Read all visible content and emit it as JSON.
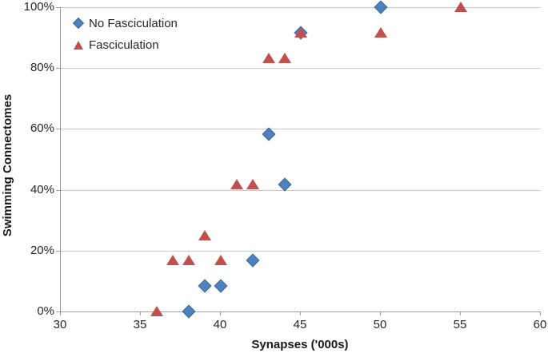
{
  "chart_data": {
    "type": "scatter",
    "title": "",
    "xlabel": "Synapses ('000s)",
    "ylabel": "Swimming Connectomes",
    "xlim": [
      30,
      60
    ],
    "xticks": [
      30,
      35,
      40,
      45,
      50,
      55,
      60
    ],
    "ylim": [
      0,
      100
    ],
    "yticks": [
      {
        "value": 0,
        "label": "0%"
      },
      {
        "value": 20,
        "label": "20%"
      },
      {
        "value": 40,
        "label": "40%"
      },
      {
        "value": 60,
        "label": "60%"
      },
      {
        "value": 80,
        "label": "80%"
      },
      {
        "value": 100,
        "label": "100%"
      }
    ],
    "grid": "horizontal",
    "legend_position": "top-left-inside",
    "series": [
      {
        "name": "No Fasciculation",
        "marker": "diamond",
        "color": "#4F81BD",
        "border_color": "#3A6796",
        "points": [
          {
            "x": 38,
            "y": 0
          },
          {
            "x": 39,
            "y": 8.3
          },
          {
            "x": 40,
            "y": 8.3
          },
          {
            "x": 42,
            "y": 16.7
          },
          {
            "x": 43,
            "y": 58.3
          },
          {
            "x": 44,
            "y": 41.7
          },
          {
            "x": 45,
            "y": 91.7
          },
          {
            "x": 50,
            "y": 100
          }
        ]
      },
      {
        "name": "Fasciculation",
        "marker": "triangle",
        "color": "#C0504D",
        "border_color": "#A33E3B",
        "points": [
          {
            "x": 36,
            "y": 0
          },
          {
            "x": 37,
            "y": 16.7
          },
          {
            "x": 38,
            "y": 16.7
          },
          {
            "x": 39,
            "y": 25
          },
          {
            "x": 40,
            "y": 16.7
          },
          {
            "x": 41,
            "y": 41.7
          },
          {
            "x": 42,
            "y": 41.7
          },
          {
            "x": 43,
            "y": 83.3
          },
          {
            "x": 44,
            "y": 83.3
          },
          {
            "x": 45,
            "y": 91.7
          },
          {
            "x": 50,
            "y": 91.7
          },
          {
            "x": 55,
            "y": 100
          }
        ]
      }
    ],
    "style": {
      "gridline_color": "#c9c9c9",
      "axis_color": "#9d9d9d",
      "text_color": "#262626"
    }
  }
}
